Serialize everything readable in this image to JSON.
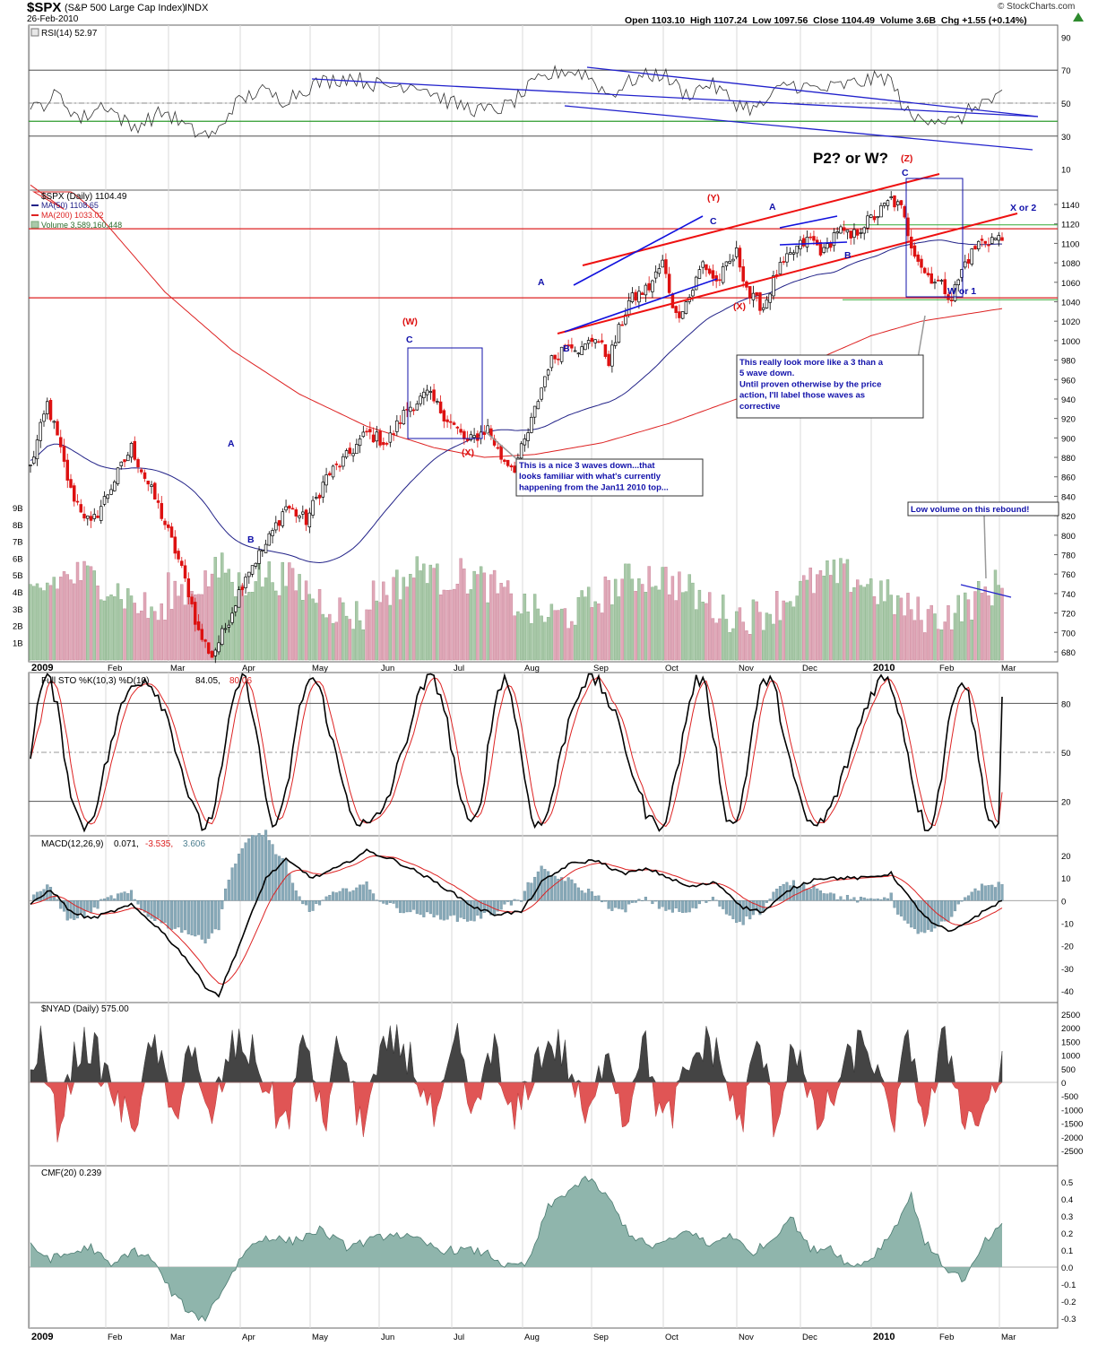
{
  "header": {
    "symbol": "$SPX",
    "name": "(S&P 500 Large Cap Index)",
    "exchange": "INDX",
    "date": "26-Feb-2010",
    "watermark": "© StockCharts.com",
    "quote": "Open 1103.10  High 1107.24  Low 1097.56  Close 1104.49  Volume 3.6B  Chg +1.55 (+0.14%)",
    "quote_arrow_color": "#2e8b2e"
  },
  "panels": {
    "rsi": {
      "label": "RSI(14) 52.97",
      "ticks": [
        90,
        70,
        50,
        30,
        10
      ]
    },
    "price": {
      "label": "$SPX (Daily) 1104.49",
      "ma50": "MA(50) 1108.65",
      "ma200": "MA(200) 1033.02",
      "volume": "Volume 3,589,160,448",
      "ticks": [
        1140,
        1120,
        1100,
        1080,
        1060,
        1040,
        1020,
        1000,
        980,
        960,
        940,
        920,
        900,
        880,
        860,
        840,
        820,
        800,
        780,
        760,
        740,
        720,
        700,
        680
      ],
      "volume_ticks": [
        "9B",
        "8B",
        "7B",
        "6B",
        "5B",
        "4B",
        "3B",
        "2B",
        "1B"
      ]
    },
    "sto": {
      "label": "Full STO %K(10,3) %D(10)",
      "k_value": "84.05,",
      "d_value": "80.06",
      "ticks": [
        80,
        50,
        20
      ]
    },
    "macd": {
      "label": "MACD(12,26,9)",
      "v1": "0.071,",
      "v2": "-3.535,",
      "v3": "3.606",
      "ticks": [
        20,
        10,
        0,
        -10,
        -20,
        -30,
        -40
      ]
    },
    "nyad": {
      "label": "$NYAD (Daily) 575.00",
      "ticks": [
        2500,
        2000,
        1500,
        1000,
        500,
        0,
        -500,
        -1000,
        -1500,
        -2000,
        -2500
      ]
    },
    "cmf": {
      "label": "CMF(20) 0.239",
      "ticks": [
        "0.5",
        "0.4",
        "0.3",
        "0.2",
        "0.1",
        "0.0",
        "-0.1",
        "-0.2",
        "-0.3"
      ]
    }
  },
  "months": [
    "2009",
    "Feb",
    "Mar",
    "Apr",
    "May",
    "Jun",
    "Jul",
    "Aug",
    "Sep",
    "Oct",
    "Nov",
    "Dec",
    "2010",
    "Feb",
    "Mar"
  ],
  "annotations": {
    "waves_red": [
      "(W)",
      "(X)",
      "(Y)",
      "(X)",
      "(Z)"
    ],
    "waves_blue": [
      "A",
      "B",
      "C",
      "A",
      "B",
      "C",
      "A",
      "B",
      "C",
      "W or 1",
      "X or 2"
    ],
    "p2": "P2? or W?",
    "note1": [
      "This is a nice 3 waves down...that",
      "looks familiar with what's currently",
      "happening from the Jan11 2010 top..."
    ],
    "note2": [
      "This really look more like a 3 than a",
      "5 wave down.",
      "Until proven otherwise by the price",
      "action, I'll label those waves as",
      "corrective"
    ],
    "note3": "Low volume on this rebound!"
  },
  "chart_data": [
    {
      "type": "line",
      "name": "price",
      "x": [
        "2009-01",
        "2009-02",
        "2009-03",
        "2009-04",
        "2009-05",
        "2009-06",
        "2009-07",
        "2009-08",
        "2009-09",
        "2009-10",
        "2009-11",
        "2009-12",
        "2010-01",
        "2010-02"
      ],
      "series": [
        {
          "name": "$SPX (Daily)",
          "values": [
            870,
            760,
            730,
            855,
            905,
            935,
            890,
            1005,
            1055,
            1050,
            1090,
            1110,
            1145,
            1100
          ]
        },
        {
          "name": "MA(50)",
          "values": [
            880,
            850,
            800,
            760,
            790,
            860,
            915,
            945,
            1000,
            1040,
            1055,
            1080,
            1100,
            1108
          ]
        },
        {
          "name": "MA(200)",
          "values": [
            1190,
            1130,
            1060,
            985,
            935,
            905,
            880,
            890,
            920,
            945,
            975,
            1010,
            1025,
            1033
          ]
        }
      ],
      "ylim": [
        680,
        1160
      ]
    },
    {
      "type": "line",
      "name": "RSI(14)",
      "values": [
        45,
        40,
        35,
        58,
        60,
        62,
        45,
        63,
        66,
        55,
        62,
        62,
        60,
        52.97
      ],
      "ylim": [
        0,
        100
      ]
    },
    {
      "type": "line",
      "name": "Full STO",
      "values": [
        40,
        30,
        25,
        70,
        80,
        60,
        25,
        85,
        70,
        30,
        80,
        60,
        85,
        84.05
      ],
      "ylim": [
        0,
        100
      ]
    },
    {
      "type": "line",
      "name": "MACD(12,26,9)",
      "values": [
        -5,
        -15,
        -40,
        20,
        18,
        15,
        -5,
        20,
        15,
        -5,
        8,
        10,
        8,
        0.071
      ],
      "ylim": [
        -42,
        25
      ]
    },
    {
      "type": "area",
      "name": "CMF(20)",
      "values": [
        0.1,
        -0.05,
        -0.3,
        0.15,
        0.15,
        0.1,
        0.05,
        0.55,
        0.3,
        0.1,
        0.2,
        0.1,
        0.4,
        0.239
      ],
      "ylim": [
        -0.35,
        0.6
      ]
    }
  ]
}
